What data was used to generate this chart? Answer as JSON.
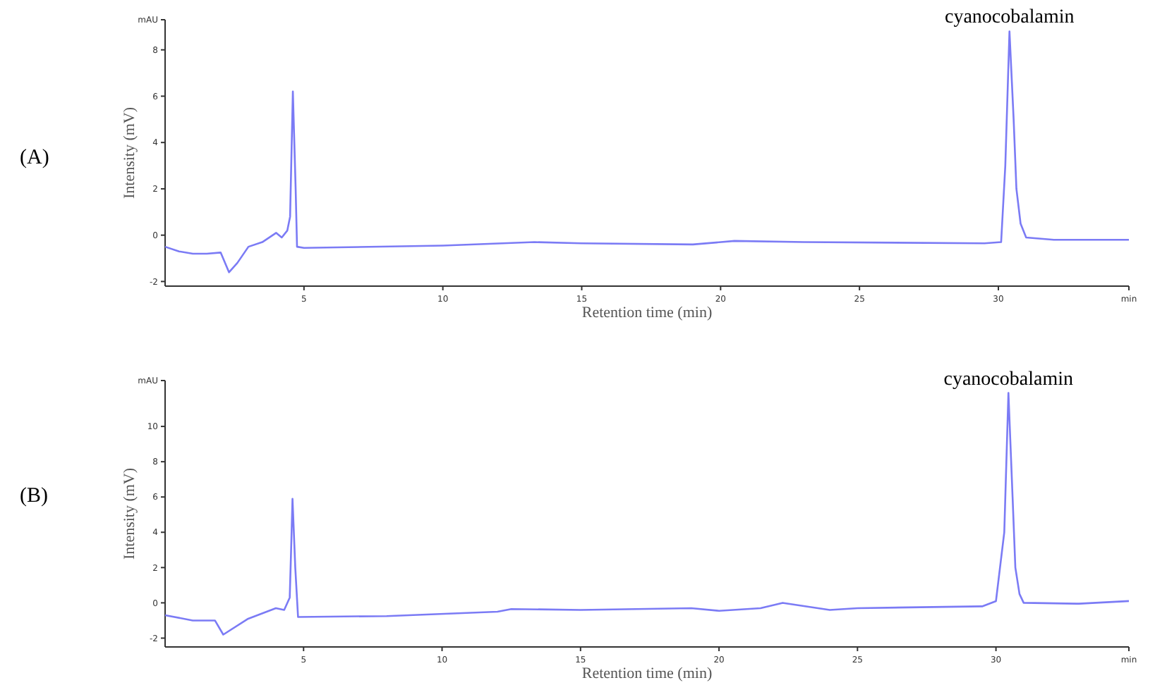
{
  "chart_data": [
    {
      "type": "line",
      "title": "(A)",
      "xlabel": "Retention time (min)",
      "ylabel": "Intensity (mV)",
      "xlim": [
        0,
        34.7
      ],
      "ylim": [
        -2.2,
        9.3
      ],
      "xticks": [
        5,
        10,
        15,
        20,
        25,
        30,
        {
          "value": 34.7,
          "label": "min"
        }
      ],
      "yticks": [
        -2,
        0,
        2,
        4,
        6,
        8,
        {
          "value": 9.3,
          "label": "mAU"
        }
      ],
      "x": [
        0,
        0.5,
        1,
        1.5,
        2,
        2.3,
        2.6,
        3,
        3.5,
        4,
        4.2,
        4.4,
        4.5,
        4.55,
        4.6,
        4.7,
        4.75,
        5,
        10,
        13.3,
        15,
        19,
        20.5,
        23,
        29.5,
        30.1,
        30.25,
        30.4,
        30.55,
        30.65,
        30.8,
        31,
        32,
        34.7
      ],
      "series": [
        {
          "color": "#7b7bf5",
          "values": [
            -0.5,
            -0.7,
            -0.8,
            -0.8,
            -0.75,
            -1.6,
            -1.2,
            -0.5,
            -0.3,
            0.1,
            -0.1,
            0.2,
            0.8,
            3.5,
            6.2,
            2,
            -0.5,
            -0.55,
            -0.45,
            -0.3,
            -0.35,
            -0.4,
            -0.25,
            -0.3,
            -0.35,
            -0.3,
            3,
            8.8,
            5,
            2,
            0.5,
            -0.1,
            -0.2,
            -0.2
          ]
        }
      ],
      "annotations": [
        {
          "text": "cyanocobalamin",
          "x": 30.4,
          "y": 8.8
        }
      ]
    },
    {
      "type": "line",
      "title": "(B)",
      "xlabel": "Retention time (min)",
      "ylabel": "Intensity (mV)",
      "xlim": [
        0,
        34.8
      ],
      "ylim": [
        -2.5,
        12.6
      ],
      "xticks": [
        5,
        10,
        15,
        20,
        25,
        30,
        {
          "value": 34.8,
          "label": "min"
        }
      ],
      "yticks": [
        -2,
        0,
        2,
        4,
        6,
        8,
        10,
        {
          "value": 12.6,
          "label": "mAU"
        }
      ],
      "x": [
        0,
        1,
        1.8,
        2.1,
        3,
        3.5,
        4,
        4.3,
        4.5,
        4.55,
        4.6,
        4.7,
        4.8,
        8,
        12,
        12.5,
        15,
        19,
        20,
        21.5,
        22.3,
        24,
        25,
        29.5,
        30,
        30.3,
        30.45,
        30.6,
        30.7,
        30.85,
        31,
        33,
        34.8
      ],
      "series": [
        {
          "color": "#7b7bf5",
          "values": [
            -0.7,
            -1,
            -1,
            -1.8,
            -0.9,
            -0.6,
            -0.3,
            -0.4,
            0.3,
            3,
            5.9,
            2,
            -0.8,
            -0.75,
            -0.5,
            -0.35,
            -0.4,
            -0.3,
            -0.45,
            -0.3,
            0,
            -0.4,
            -0.3,
            -0.2,
            0.1,
            4,
            11.9,
            6,
            2,
            0.5,
            0,
            -0.05,
            0.1
          ]
        }
      ],
      "annotations": [
        {
          "text": "cyanocobalamin",
          "x": 30.45,
          "y": 11.9
        }
      ]
    }
  ]
}
